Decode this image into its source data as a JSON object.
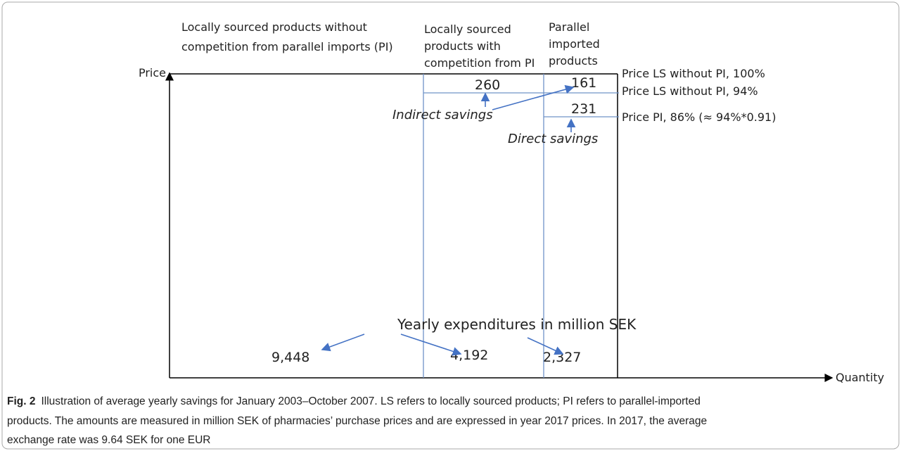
{
  "figure": {
    "headers": {
      "local_without_pi": [
        "Locally sourced products without",
        "competition from parallel imports (PI)"
      ],
      "local_with_pi": [
        "Locally sourced",
        "products with",
        "competition from PI"
      ],
      "parallel": [
        "Parallel",
        "imported",
        "products"
      ]
    },
    "axes": {
      "y": "Price",
      "x": "Quantity"
    },
    "price_levels": [
      "Price LS without PI, 100%",
      "Price LS without PI, 94%",
      "Price PI, 86% (≈ 94%*0.91)"
    ],
    "savings": {
      "indirect": {
        "label": "Indirect savings",
        "values": [
          "260",
          "161"
        ]
      },
      "direct": {
        "label": "Direct savings",
        "value": "231"
      }
    },
    "expenditures": {
      "label": "Yearly expenditures in million SEK",
      "values": [
        "9,448",
        "4,192",
        "2,327"
      ]
    },
    "caption": {
      "tag": "Fig. 2",
      "lines": [
        "Illustration of average yearly savings for January 2003–October 2007. LS refers to locally sourced products; PI refers to parallel-imported",
        "products. The amounts are measured in million SEK of pharmacies’ purchase prices and are expressed in year 2017 prices. In 2017, the average",
        "exchange rate was 9.64 SEK for one EUR"
      ]
    }
  }
}
